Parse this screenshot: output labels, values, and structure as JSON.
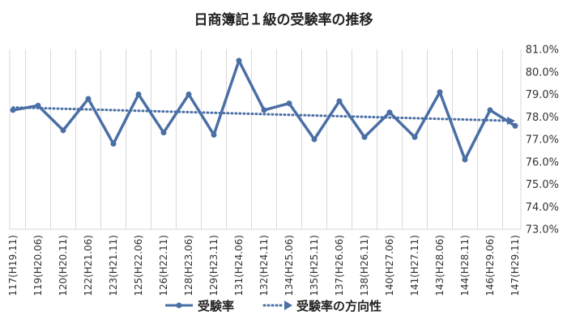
{
  "chart_data": {
    "type": "line",
    "title": "日商簿記１級の受験率の推移",
    "categories": [
      "117(H19.11)",
      "119(H20.06)",
      "120(H20.11)",
      "122(H21.06)",
      "123(H21.11)",
      "125(H22.06)",
      "126(H22.11)",
      "128(H23.06)",
      "129(H23.11)",
      "131(H24.06)",
      "132(H24.11)",
      "134(H25.06)",
      "135(H25.11)",
      "137(H26.06)",
      "138(H26.11)",
      "140(H27.06)",
      "141(H27.11)",
      "143(H28.06)",
      "144(H28.11)",
      "146(H29.06)",
      "147(H29.11)"
    ],
    "series": [
      {
        "name": "受験率",
        "values": [
          78.3,
          78.5,
          77.4,
          78.8,
          76.8,
          79.0,
          77.3,
          79.0,
          77.2,
          80.5,
          78.3,
          78.6,
          77.0,
          78.7,
          77.1,
          78.2,
          77.1,
          79.1,
          76.1,
          78.3,
          77.6
        ]
      },
      {
        "name": "受験率の方向性",
        "values": [
          78.42,
          78.39,
          78.36,
          78.33,
          78.3,
          78.27,
          78.24,
          78.21,
          78.18,
          78.15,
          78.12,
          78.09,
          78.06,
          78.03,
          78.0,
          77.97,
          77.94,
          77.91,
          77.88,
          77.85,
          77.82
        ]
      }
    ],
    "ylim": [
      73.0,
      81.0
    ],
    "yticks": [
      "73.0%",
      "74.0%",
      "75.0%",
      "76.0%",
      "77.0%",
      "78.0%",
      "79.0%",
      "80.0%",
      "81.0%"
    ],
    "y_axis_side": "right",
    "grid": "vertical",
    "legend_position": "bottom",
    "colors": {
      "series": "#4a6fa5",
      "trend": "#4a6fa5",
      "grid": "#d9d9d9"
    }
  }
}
